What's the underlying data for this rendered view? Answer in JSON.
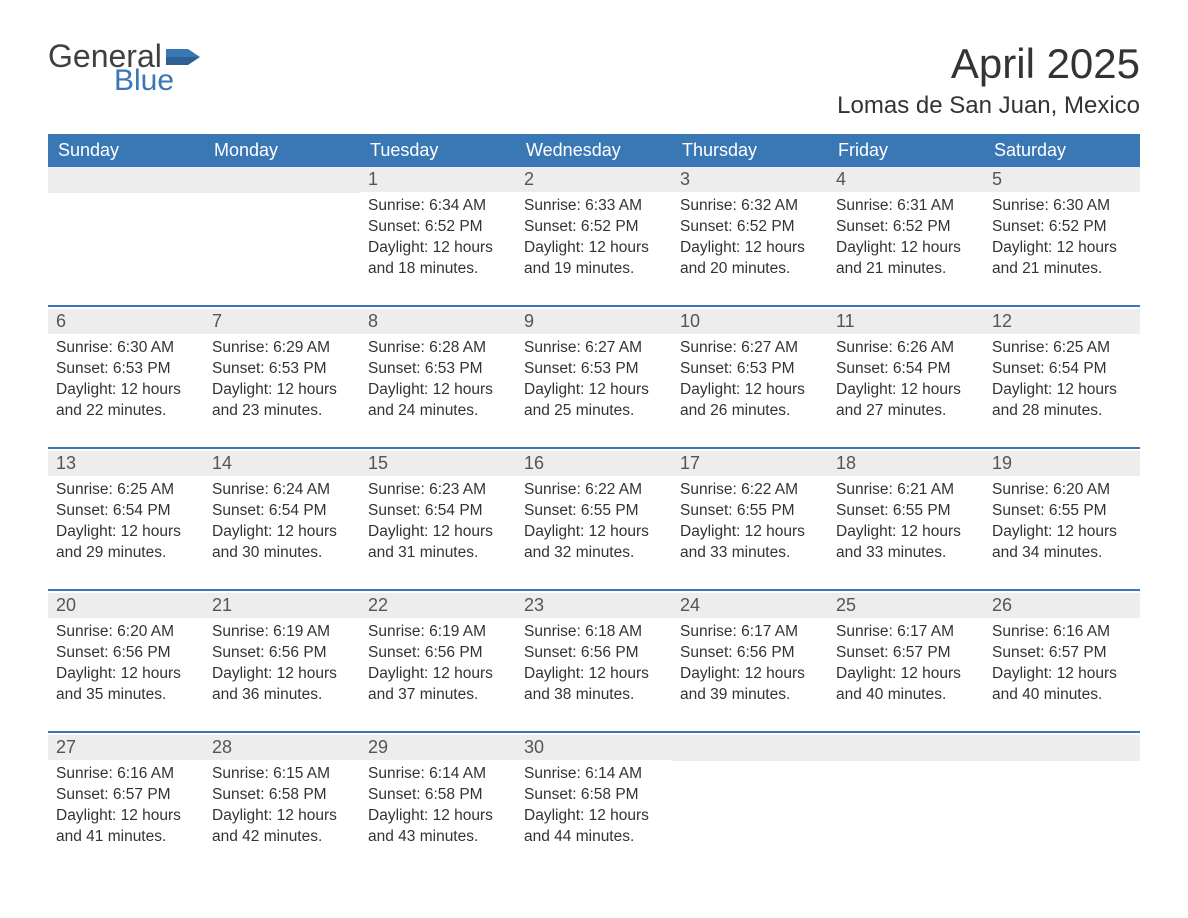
{
  "brand": {
    "word1": "General",
    "word2": "Blue",
    "flag_color": "#3a77b5"
  },
  "title": "April 2025",
  "location": "Lomas de San Juan, Mexico",
  "colors": {
    "header_bg": "#3a77b5",
    "header_text": "#ffffff",
    "daynum_bg": "#ededed",
    "text": "#333333",
    "background": "#ffffff"
  },
  "weekdays": [
    "Sunday",
    "Monday",
    "Tuesday",
    "Wednesday",
    "Thursday",
    "Friday",
    "Saturday"
  ],
  "weeks": [
    [
      null,
      null,
      {
        "n": "1",
        "sr": "Sunrise: 6:34 AM",
        "ss": "Sunset: 6:52 PM",
        "dl1": "Daylight: 12 hours",
        "dl2": "and 18 minutes."
      },
      {
        "n": "2",
        "sr": "Sunrise: 6:33 AM",
        "ss": "Sunset: 6:52 PM",
        "dl1": "Daylight: 12 hours",
        "dl2": "and 19 minutes."
      },
      {
        "n": "3",
        "sr": "Sunrise: 6:32 AM",
        "ss": "Sunset: 6:52 PM",
        "dl1": "Daylight: 12 hours",
        "dl2": "and 20 minutes."
      },
      {
        "n": "4",
        "sr": "Sunrise: 6:31 AM",
        "ss": "Sunset: 6:52 PM",
        "dl1": "Daylight: 12 hours",
        "dl2": "and 21 minutes."
      },
      {
        "n": "5",
        "sr": "Sunrise: 6:30 AM",
        "ss": "Sunset: 6:52 PM",
        "dl1": "Daylight: 12 hours",
        "dl2": "and 21 minutes."
      }
    ],
    [
      {
        "n": "6",
        "sr": "Sunrise: 6:30 AM",
        "ss": "Sunset: 6:53 PM",
        "dl1": "Daylight: 12 hours",
        "dl2": "and 22 minutes."
      },
      {
        "n": "7",
        "sr": "Sunrise: 6:29 AM",
        "ss": "Sunset: 6:53 PM",
        "dl1": "Daylight: 12 hours",
        "dl2": "and 23 minutes."
      },
      {
        "n": "8",
        "sr": "Sunrise: 6:28 AM",
        "ss": "Sunset: 6:53 PM",
        "dl1": "Daylight: 12 hours",
        "dl2": "and 24 minutes."
      },
      {
        "n": "9",
        "sr": "Sunrise: 6:27 AM",
        "ss": "Sunset: 6:53 PM",
        "dl1": "Daylight: 12 hours",
        "dl2": "and 25 minutes."
      },
      {
        "n": "10",
        "sr": "Sunrise: 6:27 AM",
        "ss": "Sunset: 6:53 PM",
        "dl1": "Daylight: 12 hours",
        "dl2": "and 26 minutes."
      },
      {
        "n": "11",
        "sr": "Sunrise: 6:26 AM",
        "ss": "Sunset: 6:54 PM",
        "dl1": "Daylight: 12 hours",
        "dl2": "and 27 minutes."
      },
      {
        "n": "12",
        "sr": "Sunrise: 6:25 AM",
        "ss": "Sunset: 6:54 PM",
        "dl1": "Daylight: 12 hours",
        "dl2": "and 28 minutes."
      }
    ],
    [
      {
        "n": "13",
        "sr": "Sunrise: 6:25 AM",
        "ss": "Sunset: 6:54 PM",
        "dl1": "Daylight: 12 hours",
        "dl2": "and 29 minutes."
      },
      {
        "n": "14",
        "sr": "Sunrise: 6:24 AM",
        "ss": "Sunset: 6:54 PM",
        "dl1": "Daylight: 12 hours",
        "dl2": "and 30 minutes."
      },
      {
        "n": "15",
        "sr": "Sunrise: 6:23 AM",
        "ss": "Sunset: 6:54 PM",
        "dl1": "Daylight: 12 hours",
        "dl2": "and 31 minutes."
      },
      {
        "n": "16",
        "sr": "Sunrise: 6:22 AM",
        "ss": "Sunset: 6:55 PM",
        "dl1": "Daylight: 12 hours",
        "dl2": "and 32 minutes."
      },
      {
        "n": "17",
        "sr": "Sunrise: 6:22 AM",
        "ss": "Sunset: 6:55 PM",
        "dl1": "Daylight: 12 hours",
        "dl2": "and 33 minutes."
      },
      {
        "n": "18",
        "sr": "Sunrise: 6:21 AM",
        "ss": "Sunset: 6:55 PM",
        "dl1": "Daylight: 12 hours",
        "dl2": "and 33 minutes."
      },
      {
        "n": "19",
        "sr": "Sunrise: 6:20 AM",
        "ss": "Sunset: 6:55 PM",
        "dl1": "Daylight: 12 hours",
        "dl2": "and 34 minutes."
      }
    ],
    [
      {
        "n": "20",
        "sr": "Sunrise: 6:20 AM",
        "ss": "Sunset: 6:56 PM",
        "dl1": "Daylight: 12 hours",
        "dl2": "and 35 minutes."
      },
      {
        "n": "21",
        "sr": "Sunrise: 6:19 AM",
        "ss": "Sunset: 6:56 PM",
        "dl1": "Daylight: 12 hours",
        "dl2": "and 36 minutes."
      },
      {
        "n": "22",
        "sr": "Sunrise: 6:19 AM",
        "ss": "Sunset: 6:56 PM",
        "dl1": "Daylight: 12 hours",
        "dl2": "and 37 minutes."
      },
      {
        "n": "23",
        "sr": "Sunrise: 6:18 AM",
        "ss": "Sunset: 6:56 PM",
        "dl1": "Daylight: 12 hours",
        "dl2": "and 38 minutes."
      },
      {
        "n": "24",
        "sr": "Sunrise: 6:17 AM",
        "ss": "Sunset: 6:56 PM",
        "dl1": "Daylight: 12 hours",
        "dl2": "and 39 minutes."
      },
      {
        "n": "25",
        "sr": "Sunrise: 6:17 AM",
        "ss": "Sunset: 6:57 PM",
        "dl1": "Daylight: 12 hours",
        "dl2": "and 40 minutes."
      },
      {
        "n": "26",
        "sr": "Sunrise: 6:16 AM",
        "ss": "Sunset: 6:57 PM",
        "dl1": "Daylight: 12 hours",
        "dl2": "and 40 minutes."
      }
    ],
    [
      {
        "n": "27",
        "sr": "Sunrise: 6:16 AM",
        "ss": "Sunset: 6:57 PM",
        "dl1": "Daylight: 12 hours",
        "dl2": "and 41 minutes."
      },
      {
        "n": "28",
        "sr": "Sunrise: 6:15 AM",
        "ss": "Sunset: 6:58 PM",
        "dl1": "Daylight: 12 hours",
        "dl2": "and 42 minutes."
      },
      {
        "n": "29",
        "sr": "Sunrise: 6:14 AM",
        "ss": "Sunset: 6:58 PM",
        "dl1": "Daylight: 12 hours",
        "dl2": "and 43 minutes."
      },
      {
        "n": "30",
        "sr": "Sunrise: 6:14 AM",
        "ss": "Sunset: 6:58 PM",
        "dl1": "Daylight: 12 hours",
        "dl2": "and 44 minutes."
      },
      null,
      null,
      null
    ]
  ]
}
